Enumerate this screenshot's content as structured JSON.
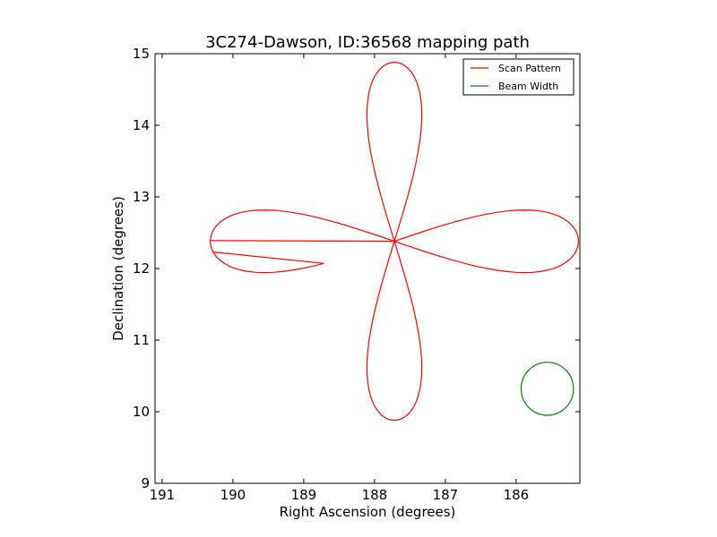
{
  "chart_data": {
    "type": "line",
    "title": "3C274-Dawson, ID:36568 mapping path",
    "xlabel": "Right Ascension (degrees)",
    "ylabel": "Declination (degrees)",
    "xlim": [
      191.1,
      185.1
    ],
    "ylim": [
      9,
      15
    ],
    "x_inverted": true,
    "xticks": [
      191,
      190,
      189,
      188,
      187,
      186
    ],
    "yticks": [
      9,
      10,
      11,
      12,
      13,
      14,
      15
    ],
    "grid": false,
    "legend_position": "top-right",
    "series": [
      {
        "name": "Scan Pattern",
        "color": "#ff0000",
        "pattern": {
          "shape": "four-petal rosette",
          "center": [
            187.72,
            12.38
          ],
          "petal_extent_ra": 2.6,
          "petal_extent_dec": 2.5,
          "petal_half_width_ra": 0.62,
          "petal_half_width_dec": 0.7,
          "start": [
            190.28,
            12.23
          ],
          "end": [
            190.33,
            12.39
          ]
        }
      },
      {
        "name": "Beam Width",
        "color": "#008000",
        "circle": {
          "center": [
            185.56,
            10.32
          ],
          "radius": 0.37
        }
      }
    ]
  }
}
